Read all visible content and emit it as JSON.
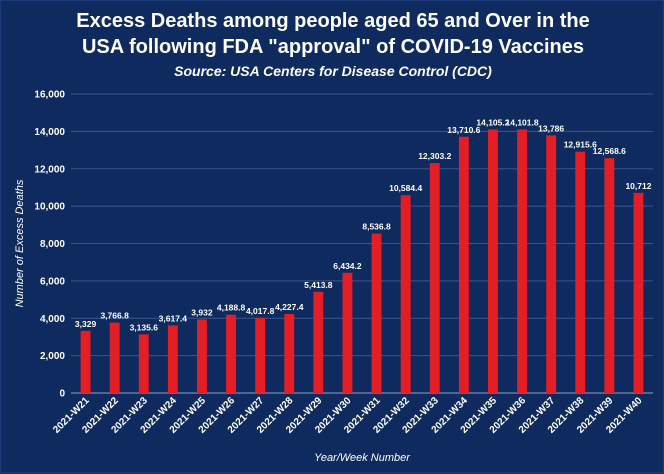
{
  "title_line_1": "Excess Deaths among people aged 65 and Over in the",
  "title_line_2": "USA following FDA \"approval\" of COVID-19 Vaccines",
  "subtitle": "Source: USA Centers for Disease Control (CDC)",
  "colors": {
    "background": "#0f2a5e",
    "bar": "#e31e24",
    "grid": "#3a5690",
    "text": "#ffffff"
  },
  "chart_data": {
    "type": "bar",
    "title": "Excess Deaths among people aged 65 and Over in the USA following FDA \"approval\" of COVID-19 Vaccines",
    "subtitle": "Source: USA Centers for Disease Control (CDC)",
    "xlabel": "Year/Week Number",
    "ylabel": "Number of Excess Deaths",
    "ylim": [
      0,
      16000
    ],
    "yticks": [
      0,
      2000,
      4000,
      6000,
      8000,
      10000,
      12000,
      14000,
      16000
    ],
    "ytick_labels": [
      "0",
      "2,000",
      "4,000",
      "6,000",
      "8,000",
      "10,000",
      "12,000",
      "14,000",
      "16,000"
    ],
    "grid": true,
    "categories": [
      "2021-W21",
      "2021-W22",
      "2021-W23",
      "2021-W24",
      "2021-W25",
      "2021-W26",
      "2021-W27",
      "2021-W28",
      "2021-W29",
      "2021-W30",
      "2021-W31",
      "2021-W32",
      "2021-W33",
      "2021-W34",
      "2021-W35",
      "2021-W36",
      "2021-W37",
      "2021-W38",
      "2021-W39",
      "2021-W40"
    ],
    "values": [
      3329,
      3766.8,
      3135.6,
      3617.4,
      3932,
      4188.8,
      4017.8,
      4227.4,
      5413.8,
      6434.2,
      8536.8,
      10584.4,
      12303.2,
      13710.6,
      14105.2,
      14101.8,
      13786,
      12915.6,
      12568.6,
      10712
    ],
    "value_labels": [
      "3,329",
      "3,766.8",
      "3,135.6",
      "3,617.4",
      "3,932",
      "4,188.8",
      "4,017.8",
      "4,227.4",
      "5,413.8",
      "6,434.2",
      "8,536.8",
      "10,584.4",
      "12,303.2",
      "13,710.6",
      "14,105.2",
      "14,101.8",
      "13,786",
      "12,915.6",
      "12,568.6",
      "10,712"
    ]
  }
}
